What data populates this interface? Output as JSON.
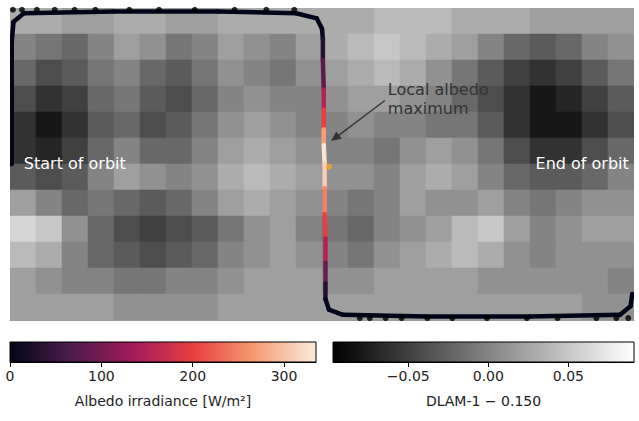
{
  "chart_data": {
    "type": "map",
    "tick_labels": false,
    "xlim": [
      -180,
      180
    ],
    "ylim": [
      -90,
      90
    ],
    "background": {
      "cells": [
        [
          0.03,
          0.03,
          0.02,
          0.02,
          0.03,
          0.03,
          0.02,
          0.02,
          0.03,
          0.03,
          0.03,
          0.03,
          0.03,
          0.03,
          0.04,
          0.04,
          0.04,
          0.03,
          0.03,
          0.03,
          0.02,
          0.02,
          0.02,
          0.02
        ],
        [
          0.0,
          -0.01,
          -0.02,
          0.0,
          0.02,
          0.01,
          -0.01,
          0.0,
          0.02,
          0.01,
          0.0,
          0.02,
          0.03,
          0.04,
          0.05,
          0.04,
          0.03,
          0.02,
          0.0,
          -0.02,
          -0.03,
          -0.02,
          0.0,
          0.01
        ],
        [
          -0.02,
          -0.04,
          -0.03,
          -0.01,
          0.0,
          -0.02,
          -0.03,
          -0.01,
          0.01,
          0.0,
          -0.01,
          0.01,
          0.02,
          0.03,
          0.04,
          0.03,
          0.01,
          -0.01,
          -0.03,
          -0.05,
          -0.06,
          -0.05,
          -0.03,
          -0.01
        ],
        [
          -0.04,
          -0.06,
          -0.05,
          -0.02,
          -0.01,
          -0.03,
          -0.04,
          -0.02,
          0.0,
          0.01,
          0.0,
          0.0,
          0.01,
          0.02,
          0.02,
          0.01,
          0.0,
          -0.02,
          -0.04,
          -0.06,
          -0.08,
          -0.07,
          -0.05,
          -0.03
        ],
        [
          -0.06,
          -0.08,
          -0.06,
          -0.03,
          -0.02,
          -0.04,
          -0.03,
          -0.01,
          0.01,
          0.02,
          0.01,
          0.0,
          0.0,
          0.01,
          0.0,
          0.0,
          -0.01,
          -0.01,
          -0.03,
          -0.06,
          -0.08,
          -0.08,
          -0.06,
          -0.04
        ],
        [
          -0.06,
          -0.07,
          -0.05,
          -0.02,
          0.0,
          -0.02,
          -0.02,
          0.0,
          0.02,
          0.03,
          0.02,
          0.01,
          0.0,
          0.0,
          -0.01,
          0.01,
          0.02,
          0.01,
          -0.01,
          -0.04,
          -0.06,
          -0.06,
          -0.04,
          -0.02
        ],
        [
          -0.03,
          -0.04,
          -0.03,
          0.0,
          0.02,
          0.01,
          0.0,
          0.01,
          0.03,
          0.04,
          0.03,
          0.02,
          0.01,
          0.01,
          0.0,
          0.02,
          0.03,
          0.02,
          0.0,
          -0.02,
          -0.03,
          -0.03,
          -0.02,
          0.0
        ],
        [
          0.02,
          0.0,
          -0.02,
          -0.01,
          -0.02,
          -0.03,
          -0.02,
          0.0,
          0.02,
          0.03,
          0.02,
          0.01,
          0.0,
          -0.01,
          0.0,
          0.02,
          0.01,
          0.01,
          0.02,
          0.0,
          -0.01,
          0.0,
          0.01,
          0.01
        ],
        [
          0.06,
          0.05,
          0.01,
          -0.02,
          -0.04,
          -0.05,
          -0.04,
          -0.03,
          -0.01,
          0.01,
          0.02,
          0.0,
          -0.01,
          -0.02,
          0.0,
          0.01,
          0.02,
          0.04,
          0.05,
          0.02,
          0.0,
          0.01,
          0.02,
          0.02
        ],
        [
          0.04,
          0.03,
          0.0,
          -0.02,
          -0.03,
          -0.04,
          -0.03,
          -0.02,
          0.0,
          0.01,
          0.02,
          0.01,
          0.0,
          -0.01,
          0.01,
          0.02,
          0.03,
          0.04,
          0.03,
          0.01,
          0.0,
          0.01,
          0.01,
          0.01
        ],
        [
          0.02,
          0.01,
          0.0,
          0.0,
          -0.01,
          -0.01,
          0.0,
          0.0,
          0.01,
          0.02,
          0.02,
          0.02,
          0.01,
          0.01,
          0.02,
          0.02,
          0.02,
          0.02,
          0.01,
          0.01,
          0.01,
          0.01,
          0.01,
          0.0
        ],
        [
          0.02,
          0.02,
          0.02,
          0.02,
          0.01,
          0.01,
          0.01,
          0.01,
          0.02,
          0.02,
          0.02,
          0.02,
          0.02,
          0.02,
          0.02,
          0.02,
          0.02,
          0.02,
          0.02,
          0.02,
          0.02,
          0.02,
          0.01,
          0.01
        ]
      ],
      "colorbar": {
        "label": "DLAM-1 − 0.150",
        "range": [
          -0.097,
          0.091
        ],
        "ticks": [
          {
            "value": -0.05,
            "label": "−0.05"
          },
          {
            "value": 0,
            "label": "0.00"
          },
          {
            "value": 0.05,
            "label": "0.05"
          }
        ]
      }
    },
    "track": {
      "x": [
        -179,
        -179,
        -179,
        -178,
        -172,
        -120,
        -60,
        -15,
        -3,
        0,
        0.5,
        0.5,
        1,
        1,
        1,
        1,
        1.5,
        1.5,
        1.5,
        2,
        2,
        2,
        2,
        4,
        12,
        60,
        120,
        172,
        178,
        179
      ],
      "y": [
        0,
        40,
        70,
        82,
        87,
        88,
        88,
        87,
        84,
        78,
        72,
        60,
        43,
        31.5,
        20,
        11,
        0,
        -14,
        -29,
        -43,
        -57,
        -69,
        -78,
        -84,
        -87,
        -88,
        -88,
        -87,
        -82,
        -75
      ],
      "values": [
        0,
        0,
        0,
        0,
        0,
        0,
        0,
        0,
        2,
        10,
        30,
        80,
        150,
        200,
        270,
        330,
        310,
        250,
        200,
        150,
        90,
        30,
        5,
        0,
        0,
        0,
        0,
        0,
        0,
        0
      ],
      "colorbar": {
        "label": "Albedo irradiance [W/m²]",
        "range": [
          0,
          335
        ],
        "ticks": [
          0,
          100,
          200,
          300
        ]
      }
    },
    "markers": {
      "x": [
        -178.3,
        -173.1,
        -164.5,
        -154.2,
        -142.7,
        -130.7,
        -111.2,
        -94,
        -73.4,
        -50.4,
        -32.1,
        -16,
        21.8,
        27.6,
        36.7,
        45.9,
        60.8,
        75.2,
        95.2,
        118.2,
        135.9,
        158.3,
        169.8,
        176.7
      ],
      "y": [
        89,
        89,
        89,
        89,
        89,
        89,
        89,
        89,
        89,
        89,
        89,
        89,
        -88.9,
        -88.9,
        -88.9,
        -88.9,
        -88.9,
        -88.9,
        -88.9,
        -88.9,
        -88.9,
        -88.9,
        -88.9,
        -88.9
      ],
      "color": "#000000"
    },
    "highlight": {
      "x": 4.1,
      "y": -1.7,
      "color": "#f5a623"
    },
    "annotations": [
      {
        "text": "Local albedo maximum",
        "x": 38,
        "y": 48.7,
        "arrow_to": [
          5.2,
          13.2
        ]
      },
      {
        "text": "Start of orbit",
        "x": -172,
        "y": 0.5
      },
      {
        "text": "End of orbit",
        "x": 177,
        "y": 0.5
      }
    ]
  }
}
